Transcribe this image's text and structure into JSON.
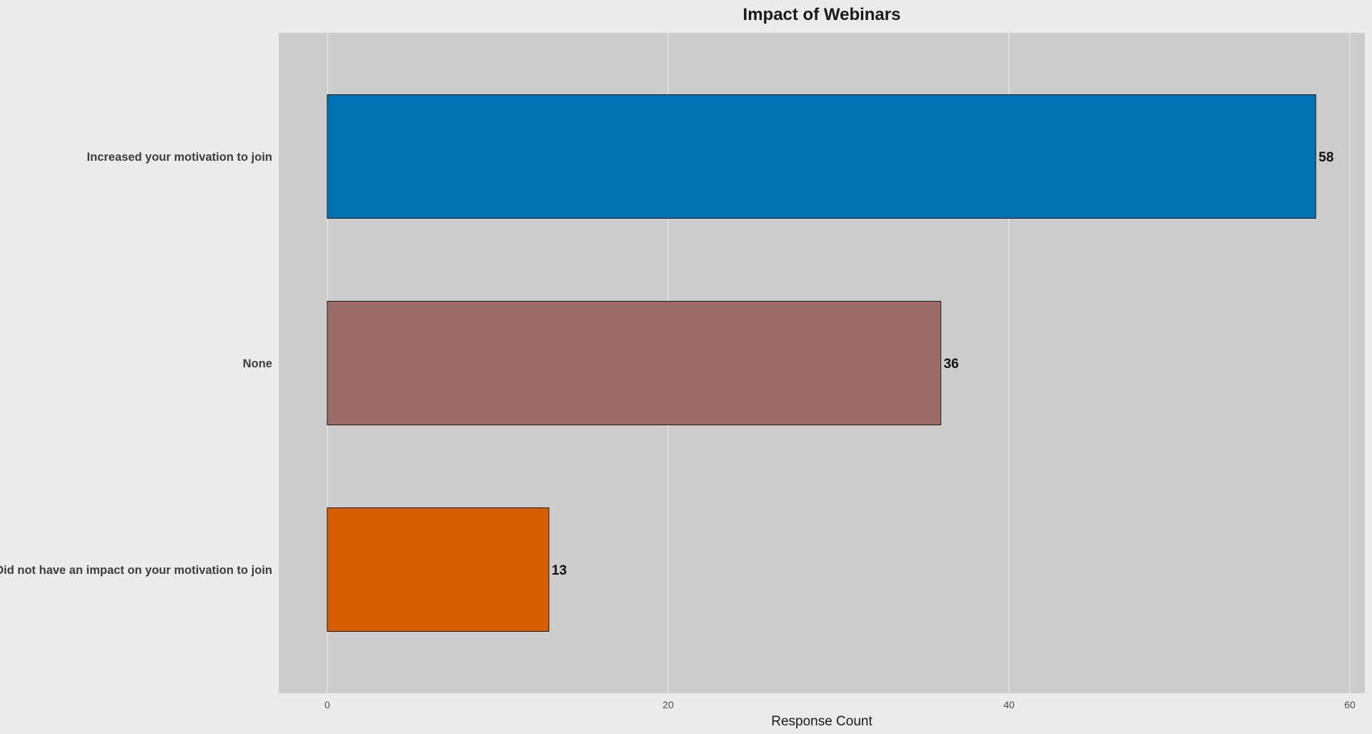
{
  "chart_data": {
    "type": "bar",
    "orientation": "horizontal",
    "title": "Impact of Webinars",
    "xlabel": "Response Count",
    "ylabel": "",
    "categories": [
      "Increased your motivation to join",
      "None",
      "Did not have an impact on your motivation to join"
    ],
    "values": [
      58,
      36,
      13
    ],
    "colors": [
      "#0072b2",
      "#9c6b67",
      "#d55e00"
    ],
    "data_labels": [
      "58",
      "36",
      "13"
    ],
    "xlim": [
      0,
      60
    ],
    "xticks": [
      0,
      20,
      40,
      60
    ],
    "xtick_labels": [
      "0",
      "20",
      "40",
      "60"
    ],
    "grid": true,
    "legend": "none"
  },
  "style": {
    "page_background": "#ebebeb",
    "panel_background": "#cccccc",
    "gridline_color": "#e8e8e8",
    "bar_outline": "#1a1a1a"
  }
}
